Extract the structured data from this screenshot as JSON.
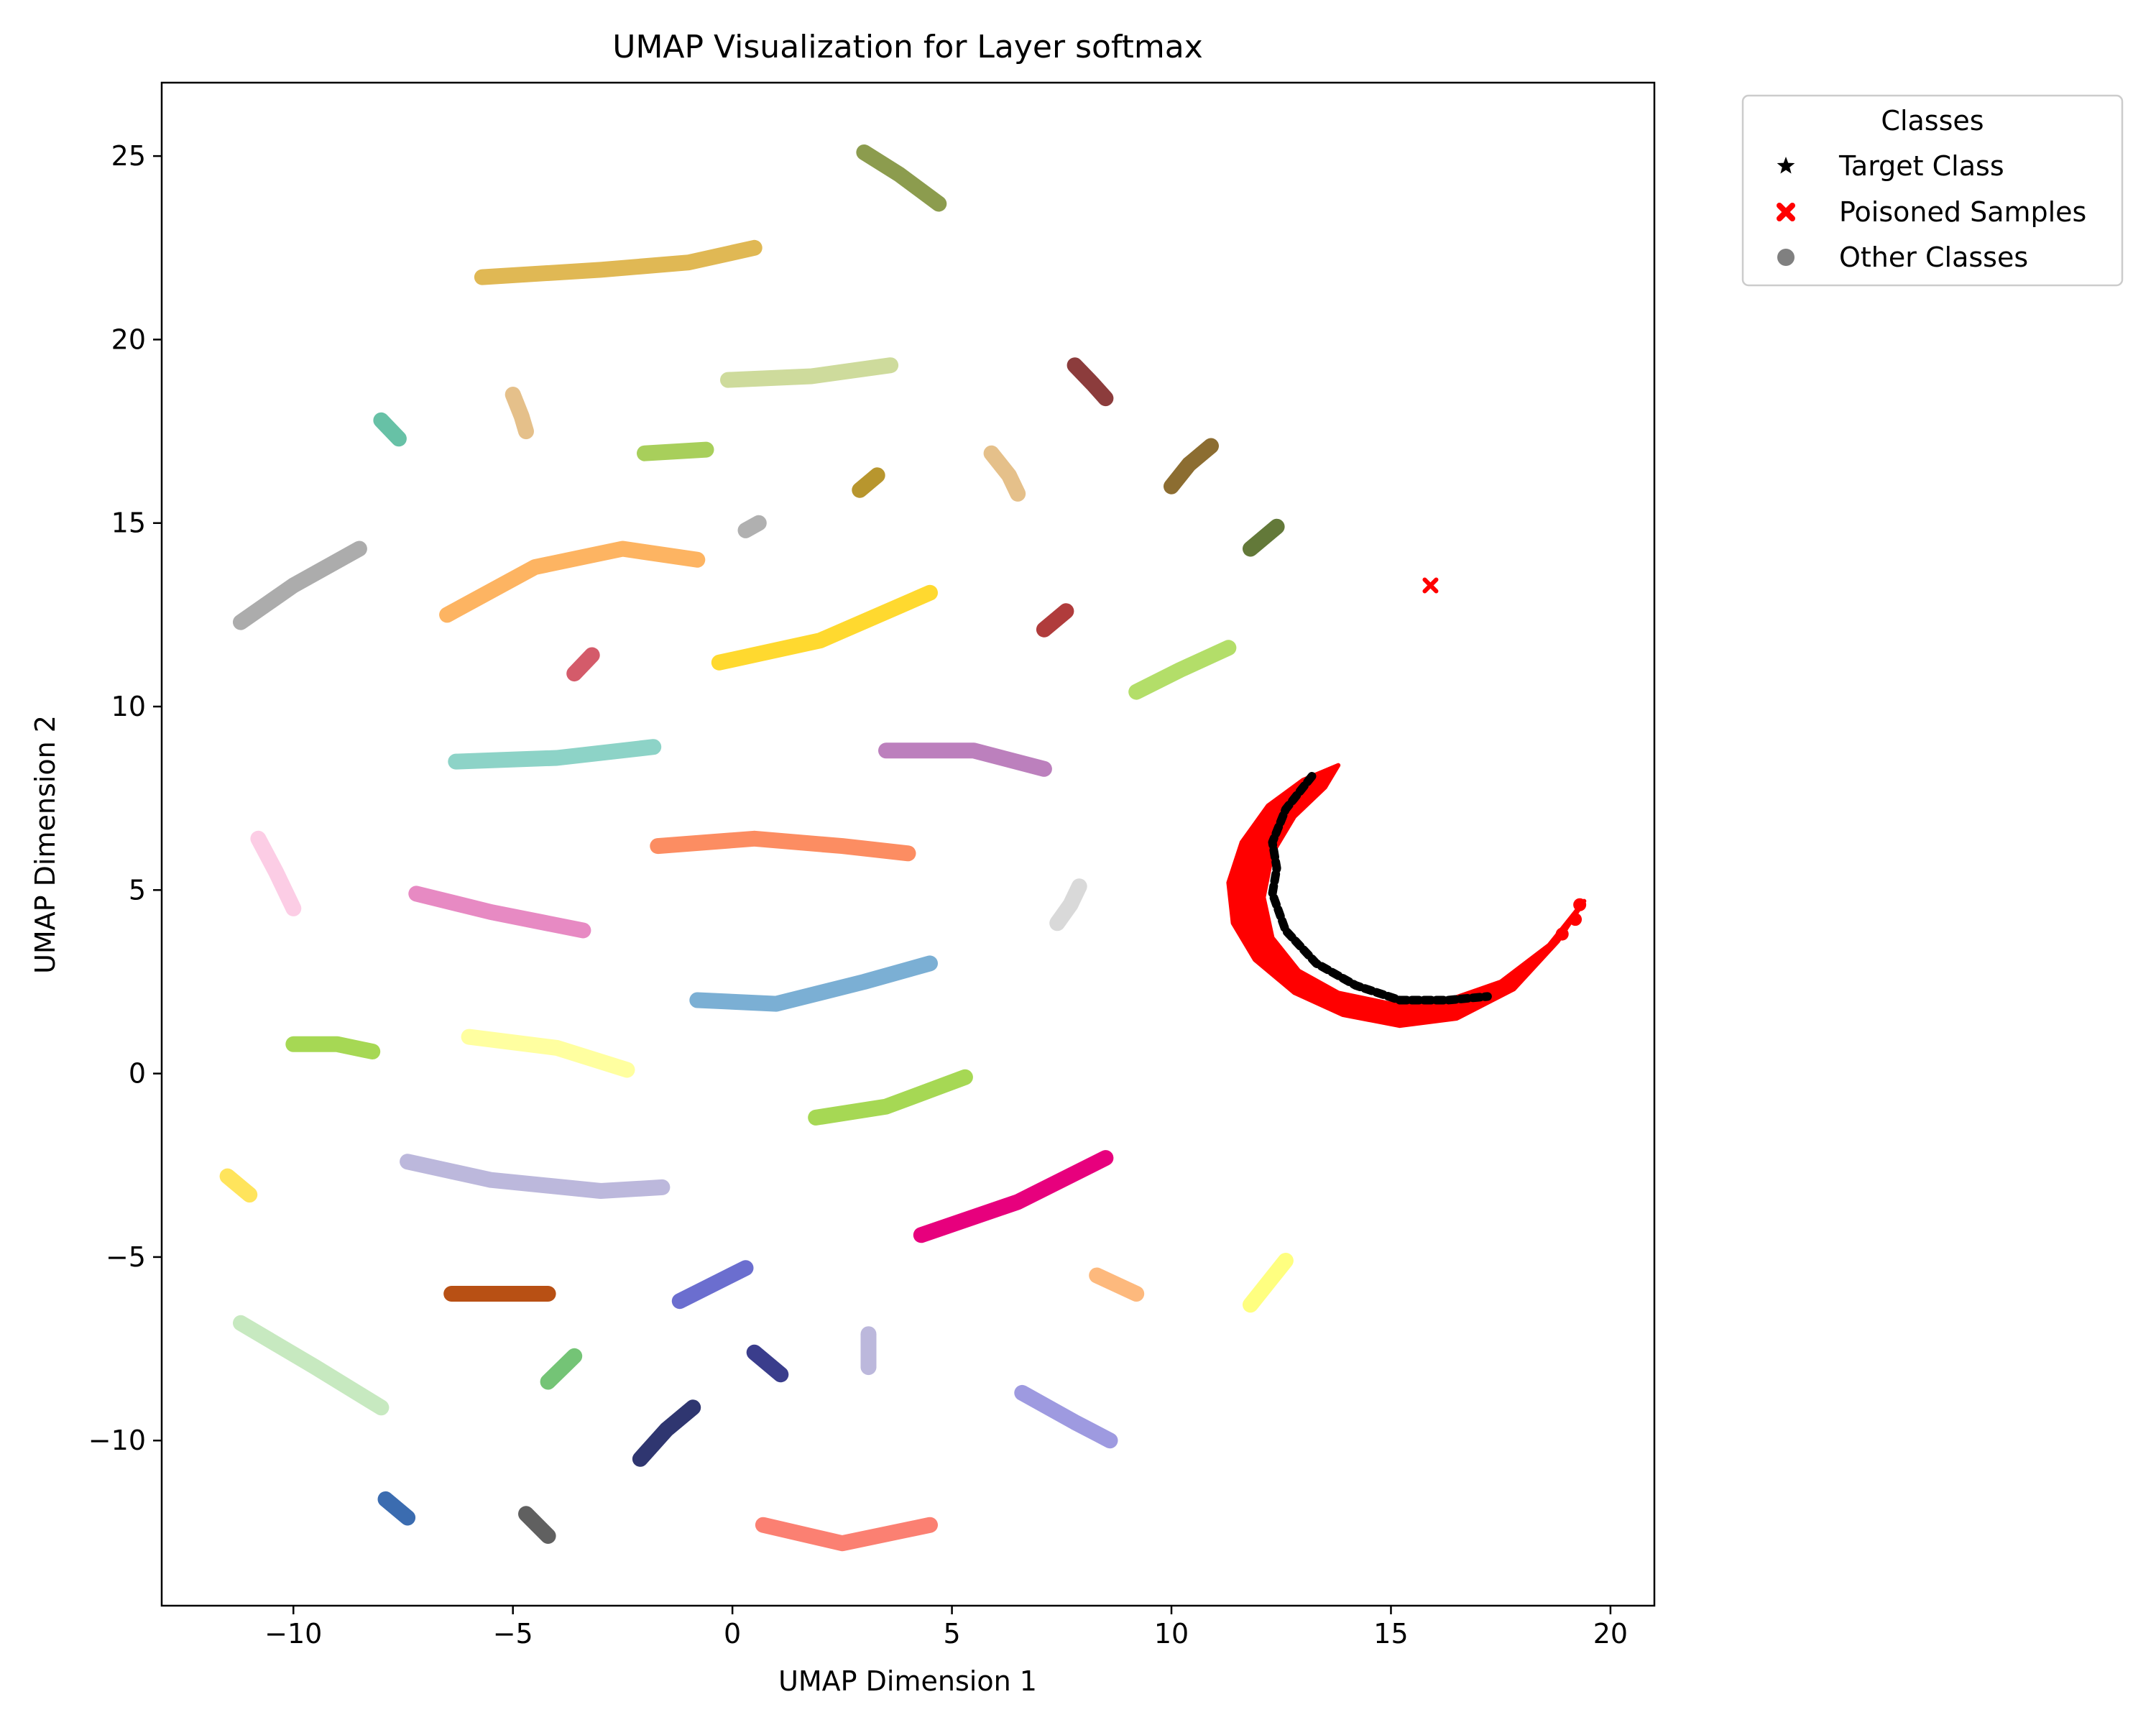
{
  "chart_data": {
    "type": "scatter",
    "title": "UMAP Visualization for Layer softmax",
    "xlabel": "UMAP Dimension 1",
    "ylabel": "UMAP Dimension 2",
    "xlim": [
      -13,
      21
    ],
    "ylim": [
      -14.5,
      27
    ],
    "xticks": [
      -10,
      -5,
      0,
      5,
      10,
      15,
      20
    ],
    "yticks": [
      -10,
      -5,
      0,
      5,
      10,
      15,
      20,
      25
    ],
    "xtick_labels": [
      "−10",
      "−5",
      "0",
      "5",
      "10",
      "15",
      "20"
    ],
    "ytick_labels": [
      "−10",
      "−5",
      "0",
      "5",
      "10",
      "15",
      "20",
      "25"
    ],
    "grid": false,
    "legend": {
      "title": "Classes",
      "placement": "outside-top-right",
      "entries": [
        {
          "label": "Target Class",
          "marker": "star",
          "color": "#000000"
        },
        {
          "label": "Poisoned Samples",
          "marker": "x",
          "color": "#ff0000"
        },
        {
          "label": "Other Classes",
          "marker": "circle",
          "color": "#808080"
        }
      ]
    },
    "other_classes": [
      {
        "color": "#8c9c4e",
        "points": [
          [
            3.0,
            25.1
          ],
          [
            3.8,
            24.5
          ],
          [
            4.7,
            23.7
          ]
        ]
      },
      {
        "color": "#e0b854",
        "points": [
          [
            -5.7,
            21.7
          ],
          [
            -3.0,
            21.9
          ],
          [
            -1.0,
            22.1
          ],
          [
            0.5,
            22.5
          ]
        ]
      },
      {
        "color": "#cedb9c",
        "points": [
          [
            -0.1,
            18.9
          ],
          [
            1.8,
            19.0
          ],
          [
            3.6,
            19.3
          ]
        ]
      },
      {
        "color": "#8c3c3c",
        "points": [
          [
            7.8,
            19.3
          ],
          [
            8.2,
            18.8
          ],
          [
            8.5,
            18.4
          ]
        ]
      },
      {
        "color": "#e5c08a",
        "points": [
          [
            -5.0,
            18.5
          ],
          [
            -4.8,
            17.9
          ],
          [
            -4.7,
            17.5
          ]
        ]
      },
      {
        "color": "#67c1a6",
        "points": [
          [
            -8.0,
            17.8
          ],
          [
            -7.6,
            17.3
          ]
        ]
      },
      {
        "color": "#a8cf5b",
        "points": [
          [
            -2.0,
            16.9
          ],
          [
            -0.6,
            17.0
          ]
        ]
      },
      {
        "color": "#e5c08a",
        "points": [
          [
            5.9,
            16.9
          ],
          [
            6.3,
            16.3
          ],
          [
            6.5,
            15.8
          ]
        ]
      },
      {
        "color": "#8c6d31",
        "points": [
          [
            10.0,
            16.0
          ],
          [
            10.4,
            16.6
          ],
          [
            10.9,
            17.1
          ]
        ]
      },
      {
        "color": "#b8962e",
        "points": [
          [
            2.9,
            15.9
          ],
          [
            3.3,
            16.3
          ]
        ]
      },
      {
        "color": "#b0b0b0",
        "points": [
          [
            0.3,
            14.8
          ],
          [
            0.6,
            15.0
          ]
        ]
      },
      {
        "color": "#637939",
        "points": [
          [
            11.8,
            14.3
          ],
          [
            12.4,
            14.9
          ]
        ]
      },
      {
        "color": "#acacac",
        "points": [
          [
            -11.2,
            12.3
          ],
          [
            -10.0,
            13.3
          ],
          [
            -8.5,
            14.3
          ]
        ]
      },
      {
        "color": "#fdb462",
        "points": [
          [
            -6.5,
            12.5
          ],
          [
            -4.5,
            13.8
          ],
          [
            -2.5,
            14.3
          ],
          [
            -0.8,
            14.0
          ]
        ]
      },
      {
        "color": "#ffd92f",
        "points": [
          [
            -0.3,
            11.2
          ],
          [
            2.0,
            11.8
          ],
          [
            4.5,
            13.1
          ]
        ]
      },
      {
        "color": "#b03c3c",
        "points": [
          [
            7.1,
            12.1
          ],
          [
            7.6,
            12.6
          ]
        ]
      },
      {
        "color": "#b3de69",
        "points": [
          [
            9.2,
            10.4
          ],
          [
            10.2,
            11.0
          ],
          [
            11.3,
            11.6
          ]
        ]
      },
      {
        "color": "#d45b6a",
        "points": [
          [
            -3.6,
            10.9
          ],
          [
            -3.2,
            11.4
          ]
        ]
      },
      {
        "color": "#8dd3c7",
        "points": [
          [
            -6.3,
            8.5
          ],
          [
            -4.0,
            8.6
          ],
          [
            -1.8,
            8.9
          ]
        ]
      },
      {
        "color": "#bc80bd",
        "points": [
          [
            3.5,
            8.8
          ],
          [
            5.5,
            8.8
          ],
          [
            7.1,
            8.3
          ]
        ]
      },
      {
        "color": "#fc8d62",
        "points": [
          [
            -1.7,
            6.2
          ],
          [
            0.5,
            6.4
          ],
          [
            2.5,
            6.2
          ],
          [
            4.0,
            6.0
          ]
        ]
      },
      {
        "color": "#fccde5",
        "points": [
          [
            -10.8,
            6.4
          ],
          [
            -10.4,
            5.5
          ],
          [
            -10.0,
            4.5
          ]
        ]
      },
      {
        "color": "#d9d9d9",
        "points": [
          [
            7.4,
            4.1
          ],
          [
            7.7,
            4.6
          ],
          [
            7.9,
            5.1
          ]
        ]
      },
      {
        "color": "#e78ac3",
        "points": [
          [
            -7.2,
            4.9
          ],
          [
            -5.5,
            4.4
          ],
          [
            -3.4,
            3.9
          ]
        ]
      },
      {
        "color": "#7bafd4",
        "points": [
          [
            -0.8,
            2.0
          ],
          [
            1.0,
            1.9
          ],
          [
            3.0,
            2.5
          ],
          [
            4.5,
            3.0
          ]
        ]
      },
      {
        "color": "#a6d854",
        "points": [
          [
            -10.0,
            0.8
          ],
          [
            -9.0,
            0.8
          ],
          [
            -8.2,
            0.6
          ]
        ]
      },
      {
        "color": "#ffffa0",
        "points": [
          [
            -6.0,
            1.0
          ],
          [
            -4.0,
            0.7
          ],
          [
            -2.4,
            0.1
          ]
        ]
      },
      {
        "color": "#a6d854",
        "points": [
          [
            1.9,
            -1.2
          ],
          [
            3.5,
            -0.9
          ],
          [
            5.3,
            -0.1
          ]
        ]
      },
      {
        "color": "#ffe45c",
        "points": [
          [
            -11.5,
            -2.8
          ],
          [
            -11.0,
            -3.3
          ]
        ]
      },
      {
        "color": "#bcb8dc",
        "points": [
          [
            -7.4,
            -2.4
          ],
          [
            -5.5,
            -2.9
          ],
          [
            -3.0,
            -3.2
          ],
          [
            -1.6,
            -3.1
          ]
        ]
      },
      {
        "color": "#e7007d",
        "points": [
          [
            4.3,
            -4.4
          ],
          [
            6.5,
            -3.5
          ],
          [
            8.5,
            -2.3
          ]
        ]
      },
      {
        "color": "#b85014",
        "points": [
          [
            -6.4,
            -6.0
          ],
          [
            -4.2,
            -6.0
          ]
        ]
      },
      {
        "color": "#6b6ecf",
        "points": [
          [
            -1.2,
            -6.2
          ],
          [
            0.3,
            -5.3
          ]
        ]
      },
      {
        "color": "#fdb97d",
        "points": [
          [
            8.3,
            -5.5
          ],
          [
            9.2,
            -6.0
          ]
        ]
      },
      {
        "color": "#ffff80",
        "points": [
          [
            11.8,
            -6.3
          ],
          [
            12.6,
            -5.1
          ]
        ]
      },
      {
        "color": "#c7e9c0",
        "points": [
          [
            -11.2,
            -6.8
          ],
          [
            -9.5,
            -8.0
          ],
          [
            -8.0,
            -9.1
          ]
        ]
      },
      {
        "color": "#74c476",
        "points": [
          [
            -4.2,
            -8.4
          ],
          [
            -3.6,
            -7.7
          ]
        ]
      },
      {
        "color": "#bcb8dc",
        "points": [
          [
            3.1,
            -7.1
          ],
          [
            3.1,
            -8.0
          ]
        ]
      },
      {
        "color": "#3a3d8c",
        "points": [
          [
            0.5,
            -7.6
          ],
          [
            1.1,
            -8.2
          ]
        ]
      },
      {
        "color": "#9e9ae0",
        "points": [
          [
            6.6,
            -8.7
          ],
          [
            7.8,
            -9.5
          ],
          [
            8.6,
            -10.0
          ]
        ]
      },
      {
        "color": "#2f3670",
        "points": [
          [
            -2.1,
            -10.5
          ],
          [
            -1.5,
            -9.7
          ],
          [
            -0.9,
            -9.1
          ]
        ]
      },
      {
        "color": "#3b6cb0",
        "points": [
          [
            -7.9,
            -11.6
          ],
          [
            -7.4,
            -12.1
          ]
        ]
      },
      {
        "color": "#606060",
        "points": [
          [
            -4.7,
            -12.0
          ],
          [
            -4.2,
            -12.6
          ]
        ]
      },
      {
        "color": "#fb8072",
        "points": [
          [
            0.7,
            -12.3
          ],
          [
            2.5,
            -12.8
          ],
          [
            4.5,
            -12.3
          ]
        ]
      }
    ],
    "poisoned_isolated_point": [
      15.9,
      13.3
    ],
    "crescent": {
      "outer_edge": [
        [
          13.8,
          8.4
        ],
        [
          13.0,
          8.0
        ],
        [
          12.2,
          7.3
        ],
        [
          11.6,
          6.3
        ],
        [
          11.3,
          5.2
        ],
        [
          11.4,
          4.1
        ],
        [
          11.9,
          3.1
        ],
        [
          12.8,
          2.2
        ],
        [
          13.9,
          1.6
        ],
        [
          15.2,
          1.3
        ],
        [
          16.5,
          1.5
        ],
        [
          17.8,
          2.3
        ],
        [
          18.8,
          3.6
        ],
        [
          19.4,
          4.7
        ]
      ],
      "inner_edge": [
        [
          19.4,
          4.7
        ],
        [
          18.6,
          3.5
        ],
        [
          17.5,
          2.5
        ],
        [
          16.3,
          2.0
        ],
        [
          15.0,
          1.9
        ],
        [
          13.8,
          2.2
        ],
        [
          12.9,
          2.8
        ],
        [
          12.3,
          3.7
        ],
        [
          12.1,
          4.8
        ],
        [
          12.3,
          6.0
        ],
        [
          12.8,
          7.0
        ],
        [
          13.5,
          7.8
        ],
        [
          13.8,
          8.4
        ]
      ]
    },
    "target_class_band": [
      [
        13.2,
        8.1
      ],
      [
        12.6,
        7.2
      ],
      [
        12.3,
        6.3
      ],
      [
        12.4,
        5.6
      ],
      [
        12.3,
        4.9
      ],
      [
        12.6,
        3.9
      ],
      [
        13.3,
        3.0
      ],
      [
        14.2,
        2.4
      ],
      [
        15.2,
        2.0
      ],
      [
        16.3,
        2.0
      ],
      [
        17.2,
        2.1
      ]
    ]
  }
}
